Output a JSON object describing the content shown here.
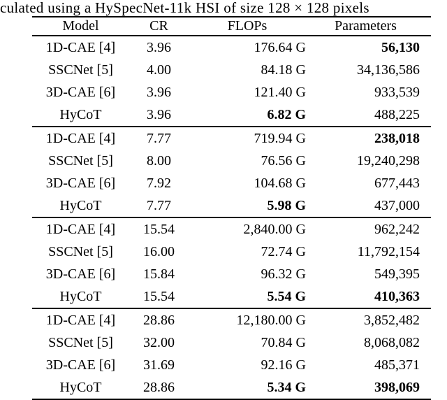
{
  "caption": "culated using a HySpecNet-11k HSI of size 128 × 128 pixels",
  "table": {
    "headers": {
      "model": "Model",
      "cr": "CR",
      "flops": "FLOPs",
      "params": "Parameters"
    },
    "groups": [
      {
        "rows": [
          {
            "model": "1D-CAE [4]",
            "cr": "3.96",
            "flops": "176.64 G",
            "params": "56,130",
            "params_bold": true
          },
          {
            "model": "SSCNet [5]",
            "cr": "4.00",
            "flops": "84.18 G",
            "params": "34,136,586"
          },
          {
            "model": "3D-CAE [6]",
            "cr": "3.96",
            "flops": "121.40 G",
            "params": "933,539"
          },
          {
            "model": "HyCoT",
            "cr": "3.96",
            "flops": "6.82 G",
            "flops_bold": true,
            "params": "488,225"
          }
        ]
      },
      {
        "rows": [
          {
            "model": "1D-CAE [4]",
            "cr": "7.77",
            "flops": "719.94 G",
            "params": "238,018",
            "params_bold": true
          },
          {
            "model": "SSCNet [5]",
            "cr": "8.00",
            "flops": "76.56 G",
            "params": "19,240,298"
          },
          {
            "model": "3D-CAE [6]",
            "cr": "7.92",
            "flops": "104.68 G",
            "params": "677,443"
          },
          {
            "model": "HyCoT",
            "cr": "7.77",
            "flops": "5.98 G",
            "flops_bold": true,
            "params": "437,000"
          }
        ]
      },
      {
        "rows": [
          {
            "model": "1D-CAE [4]",
            "cr": "15.54",
            "flops": "2,840.00 G",
            "params": "962,242"
          },
          {
            "model": "SSCNet [5]",
            "cr": "16.00",
            "flops": "72.74 G",
            "params": "11,792,154"
          },
          {
            "model": "3D-CAE [6]",
            "cr": "15.84",
            "flops": "96.32 G",
            "params": "549,395"
          },
          {
            "model": "HyCoT",
            "cr": "15.54",
            "flops": "5.54 G",
            "flops_bold": true,
            "params": "410,363",
            "params_bold": true
          }
        ]
      },
      {
        "rows": [
          {
            "model": "1D-CAE [4]",
            "cr": "28.86",
            "flops": "12,180.00 G",
            "params": "3,852,482"
          },
          {
            "model": "SSCNet [5]",
            "cr": "32.00",
            "flops": "70.84 G",
            "params": "8,068,082"
          },
          {
            "model": "3D-CAE [6]",
            "cr": "31.69",
            "flops": "92.16 G",
            "params": "485,371"
          },
          {
            "model": "HyCoT",
            "cr": "28.86",
            "flops": "5.34 G",
            "flops_bold": true,
            "params": "398,069",
            "params_bold": true
          }
        ]
      }
    ]
  }
}
